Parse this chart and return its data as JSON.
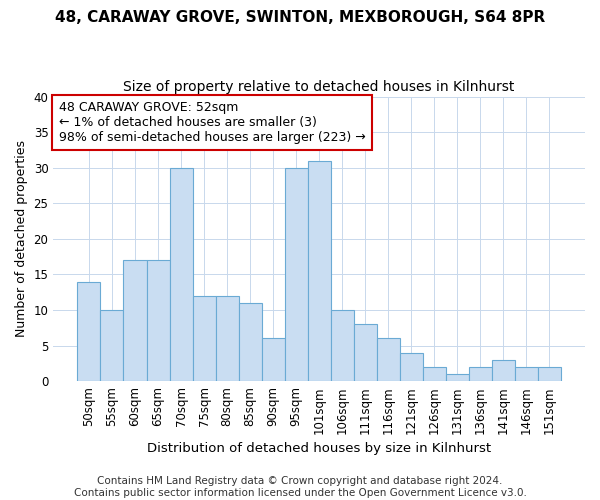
{
  "title1": "48, CARAWAY GROVE, SWINTON, MEXBOROUGH, S64 8PR",
  "title2": "Size of property relative to detached houses in Kilnhurst",
  "xlabel": "Distribution of detached houses by size in Kilnhurst",
  "ylabel": "Number of detached properties",
  "categories": [
    "50sqm",
    "55sqm",
    "60sqm",
    "65sqm",
    "70sqm",
    "75sqm",
    "80sqm",
    "85sqm",
    "90sqm",
    "95sqm",
    "101sqm",
    "106sqm",
    "111sqm",
    "116sqm",
    "121sqm",
    "126sqm",
    "131sqm",
    "136sqm",
    "141sqm",
    "146sqm",
    "151sqm"
  ],
  "values": [
    14,
    10,
    17,
    17,
    30,
    12,
    12,
    11,
    6,
    30,
    31,
    10,
    8,
    6,
    4,
    2,
    1,
    2,
    3,
    2,
    2
  ],
  "bar_color": "#c9ddf2",
  "bar_edge_color": "#6aaad4",
  "annotation_line1": "48 CARAWAY GROVE: 52sqm",
  "annotation_line2": "← 1% of detached houses are smaller (3)",
  "annotation_line3": "98% of semi-detached houses are larger (223) →",
  "annotation_box_color": "white",
  "annotation_box_edge_color": "#cc0000",
  "grid_color": "#c8d8ec",
  "footer_line1": "Contains HM Land Registry data © Crown copyright and database right 2024.",
  "footer_line2": "Contains public sector information licensed under the Open Government Licence v3.0.",
  "ylim": [
    0,
    40
  ],
  "yticks": [
    0,
    5,
    10,
    15,
    20,
    25,
    30,
    35,
    40
  ],
  "title1_fontsize": 11,
  "title2_fontsize": 10,
  "xlabel_fontsize": 9.5,
  "ylabel_fontsize": 9,
  "tick_fontsize": 8.5,
  "annotation_fontsize": 9,
  "footer_fontsize": 7.5
}
